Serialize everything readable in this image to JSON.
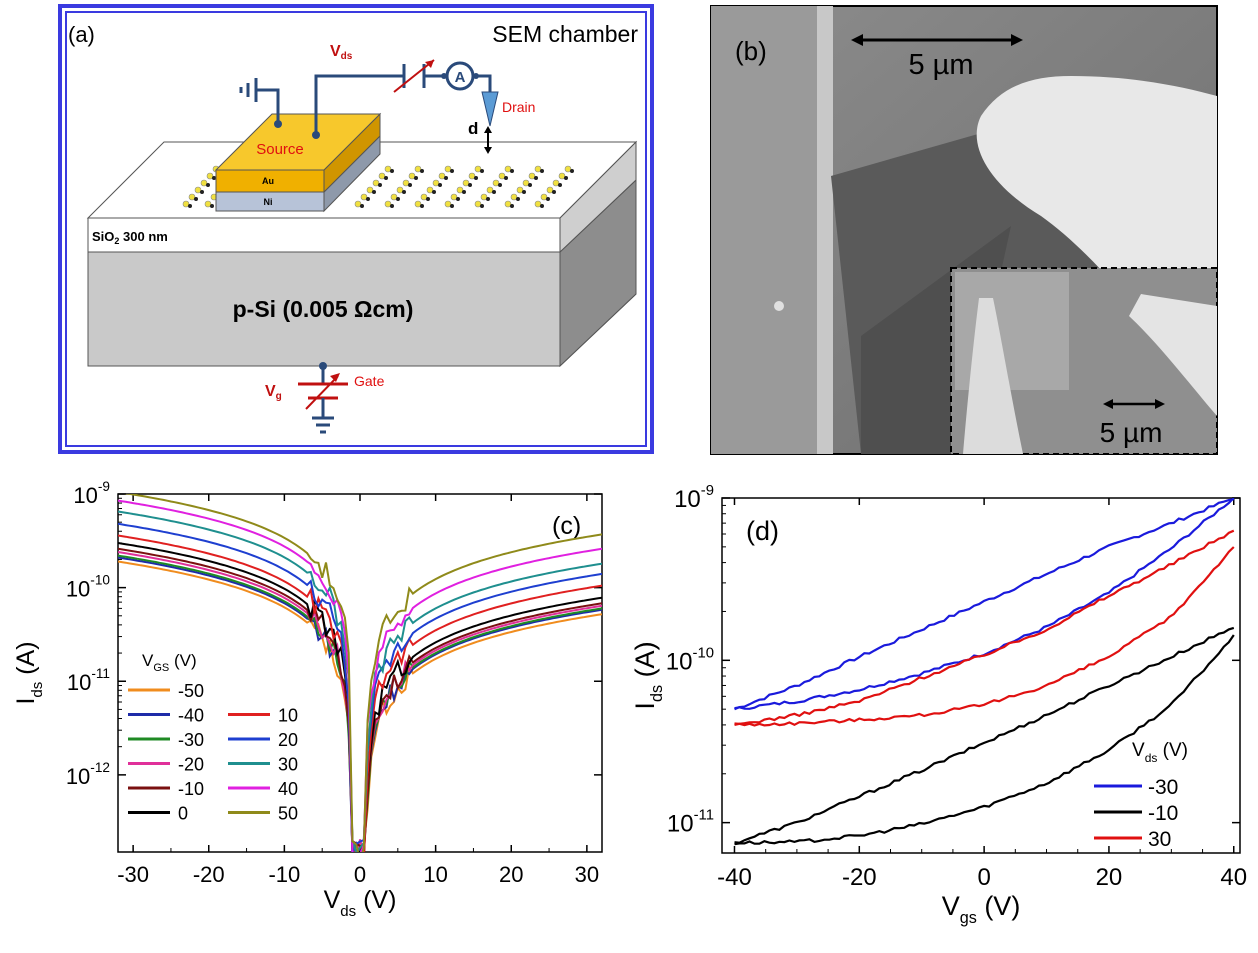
{
  "panel_a": {
    "label": "(a)",
    "chamber_title": "SEM chamber",
    "vds_label": "V",
    "vds_sub": "ds",
    "ammeter": "A",
    "drain_label": "Drain",
    "d_label": "d",
    "source_label": "Source",
    "au_label": "Au",
    "ni_label": "Ni",
    "oxide_label": "SiO",
    "oxide_sub": "2",
    "oxide_thickness": "300 nm",
    "substrate_label": "p-Si (0.005 Ωcm)",
    "vg_label": "V",
    "vg_sub": "g",
    "gate_label": "Gate"
  },
  "panel_b": {
    "label": "(b)",
    "scale_main": "5 µm",
    "scale_inset": "5 µm"
  },
  "chart_data": [
    {
      "panel": "(c)",
      "type": "line",
      "xlabel": "V",
      "xlabel_sub": "ds",
      "xunit": "(V)",
      "ylabel": "I",
      "ylabel_sub": "ds",
      "yunit": "(A)",
      "xlim": [
        -32,
        32
      ],
      "ylim": [
        1.5e-13,
        1e-09
      ],
      "yscale": "log",
      "xticks": [
        "-30",
        "-20",
        "-10",
        "0",
        "10",
        "20",
        "30"
      ],
      "yticks": [
        {
          "base": "10",
          "exp": "-12"
        },
        {
          "base": "10",
          "exp": "-11"
        },
        {
          "base": "10",
          "exp": "-10"
        },
        {
          "base": "10",
          "exp": "-9"
        }
      ],
      "legend_title": "V",
      "legend_title_sub": "GS",
      "legend_title_unit": "(V)",
      "legend_position": "left",
      "series": [
        {
          "name": "-50",
          "color": "#f08c1e",
          "y_at_minus32": 1.9e-10,
          "y_at_plus32": 5.2e-11
        },
        {
          "name": "-40",
          "color": "#1e2ba8",
          "y_at_minus32": 2.1e-10,
          "y_at_plus32": 5.8e-11
        },
        {
          "name": "-30",
          "color": "#1f8a24",
          "y_at_minus32": 2.2e-10,
          "y_at_plus32": 6e-11
        },
        {
          "name": "-20",
          "color": "#e0309a",
          "y_at_minus32": 2.4e-10,
          "y_at_plus32": 6.4e-11
        },
        {
          "name": "-10",
          "color": "#7a1010",
          "y_at_minus32": 2.6e-10,
          "y_at_plus32": 6.8e-11
        },
        {
          "name": "0",
          "color": "#000000",
          "y_at_minus32": 3e-10,
          "y_at_plus32": 7.8e-11
        },
        {
          "name": "10",
          "color": "#e02020",
          "y_at_minus32": 3.6e-10,
          "y_at_plus32": 1.05e-10
        },
        {
          "name": "20",
          "color": "#1e3fd0",
          "y_at_minus32": 4.8e-10,
          "y_at_plus32": 1.4e-10
        },
        {
          "name": "30",
          "color": "#1f8f8f",
          "y_at_minus32": 6.5e-10,
          "y_at_plus32": 1.8e-10
        },
        {
          "name": "40",
          "color": "#e020e0",
          "y_at_minus32": 8.5e-10,
          "y_at_plus32": 2.6e-10
        },
        {
          "name": "50",
          "color": "#8f8a1a",
          "y_at_minus32": 1.05e-09,
          "y_at_plus32": 3.7e-10
        }
      ]
    },
    {
      "panel": "(d)",
      "type": "line",
      "xlabel": "V",
      "xlabel_sub": "gs",
      "xunit": "(V)",
      "ylabel": "I",
      "ylabel_sub": "ds",
      "yunit": "(A)",
      "xlim": [
        -42,
        41
      ],
      "ylim": [
        6.5e-12,
        1e-09
      ],
      "yscale": "log",
      "xticks": [
        "-40",
        "-20",
        "0",
        "20",
        "40"
      ],
      "yticks": [
        {
          "base": "10",
          "exp": "-11"
        },
        {
          "base": "10",
          "exp": "-10"
        },
        {
          "base": "10",
          "exp": "-9"
        }
      ],
      "legend_title": "V",
      "legend_title_sub": "ds",
      "legend_title_unit": "(V)",
      "legend_position": "bottom-right",
      "series": [
        {
          "name": "-30",
          "color": "#1a1adc",
          "upper": [
            [
              -40,
              5e-11
            ],
            [
              -30,
              7e-11
            ],
            [
              -20,
              1.05e-10
            ],
            [
              -10,
              1.55e-10
            ],
            [
              0,
              2.3e-10
            ],
            [
              10,
              3.4e-10
            ],
            [
              20,
              5e-10
            ],
            [
              30,
              7e-10
            ],
            [
              40,
              1e-09
            ]
          ],
          "lower": [
            [
              -40,
              5e-11
            ],
            [
              -30,
              5.6e-11
            ],
            [
              -20,
              6.6e-11
            ],
            [
              -10,
              8.3e-11
            ],
            [
              0,
              1.1e-10
            ],
            [
              10,
              1.6e-10
            ],
            [
              20,
              2.6e-10
            ],
            [
              30,
              4.9e-10
            ],
            [
              40,
              1e-09
            ]
          ]
        },
        {
          "name": "-10",
          "color": "#000000",
          "upper": [
            [
              -40,
              7.5e-12
            ],
            [
              -30,
              1e-11
            ],
            [
              -20,
              1.45e-11
            ],
            [
              -10,
              2.1e-11
            ],
            [
              0,
              3.1e-11
            ],
            [
              10,
              4.6e-11
            ],
            [
              20,
              7e-11
            ],
            [
              30,
              1.05e-10
            ],
            [
              40,
              1.6e-10
            ]
          ],
          "lower": [
            [
              -40,
              7.5e-12
            ],
            [
              -30,
              7.6e-12
            ],
            [
              -20,
              8.3e-12
            ],
            [
              -10,
              9.8e-12
            ],
            [
              0,
              1.25e-11
            ],
            [
              10,
              1.75e-11
            ],
            [
              20,
              2.8e-11
            ],
            [
              30,
              5.3e-11
            ],
            [
              40,
              1.4e-10
            ]
          ]
        },
        {
          "name": "30",
          "color": "#e01010",
          "upper": [
            [
              -40,
              4e-11
            ],
            [
              -30,
              4.6e-11
            ],
            [
              -20,
              5.6e-11
            ],
            [
              -10,
              7.8e-11
            ],
            [
              0,
              1.08e-10
            ],
            [
              10,
              1.55e-10
            ],
            [
              20,
              2.5e-10
            ],
            [
              30,
              3.9e-10
            ],
            [
              40,
              6.3e-10
            ]
          ],
          "lower": [
            [
              -40,
              4e-11
            ],
            [
              -30,
              4.1e-11
            ],
            [
              -20,
              4.3e-11
            ],
            [
              -10,
              4.6e-11
            ],
            [
              0,
              5.3e-11
            ],
            [
              10,
              7e-11
            ],
            [
              20,
              1.05e-10
            ],
            [
              30,
              1.85e-10
            ],
            [
              40,
              5e-10
            ]
          ]
        }
      ]
    }
  ]
}
